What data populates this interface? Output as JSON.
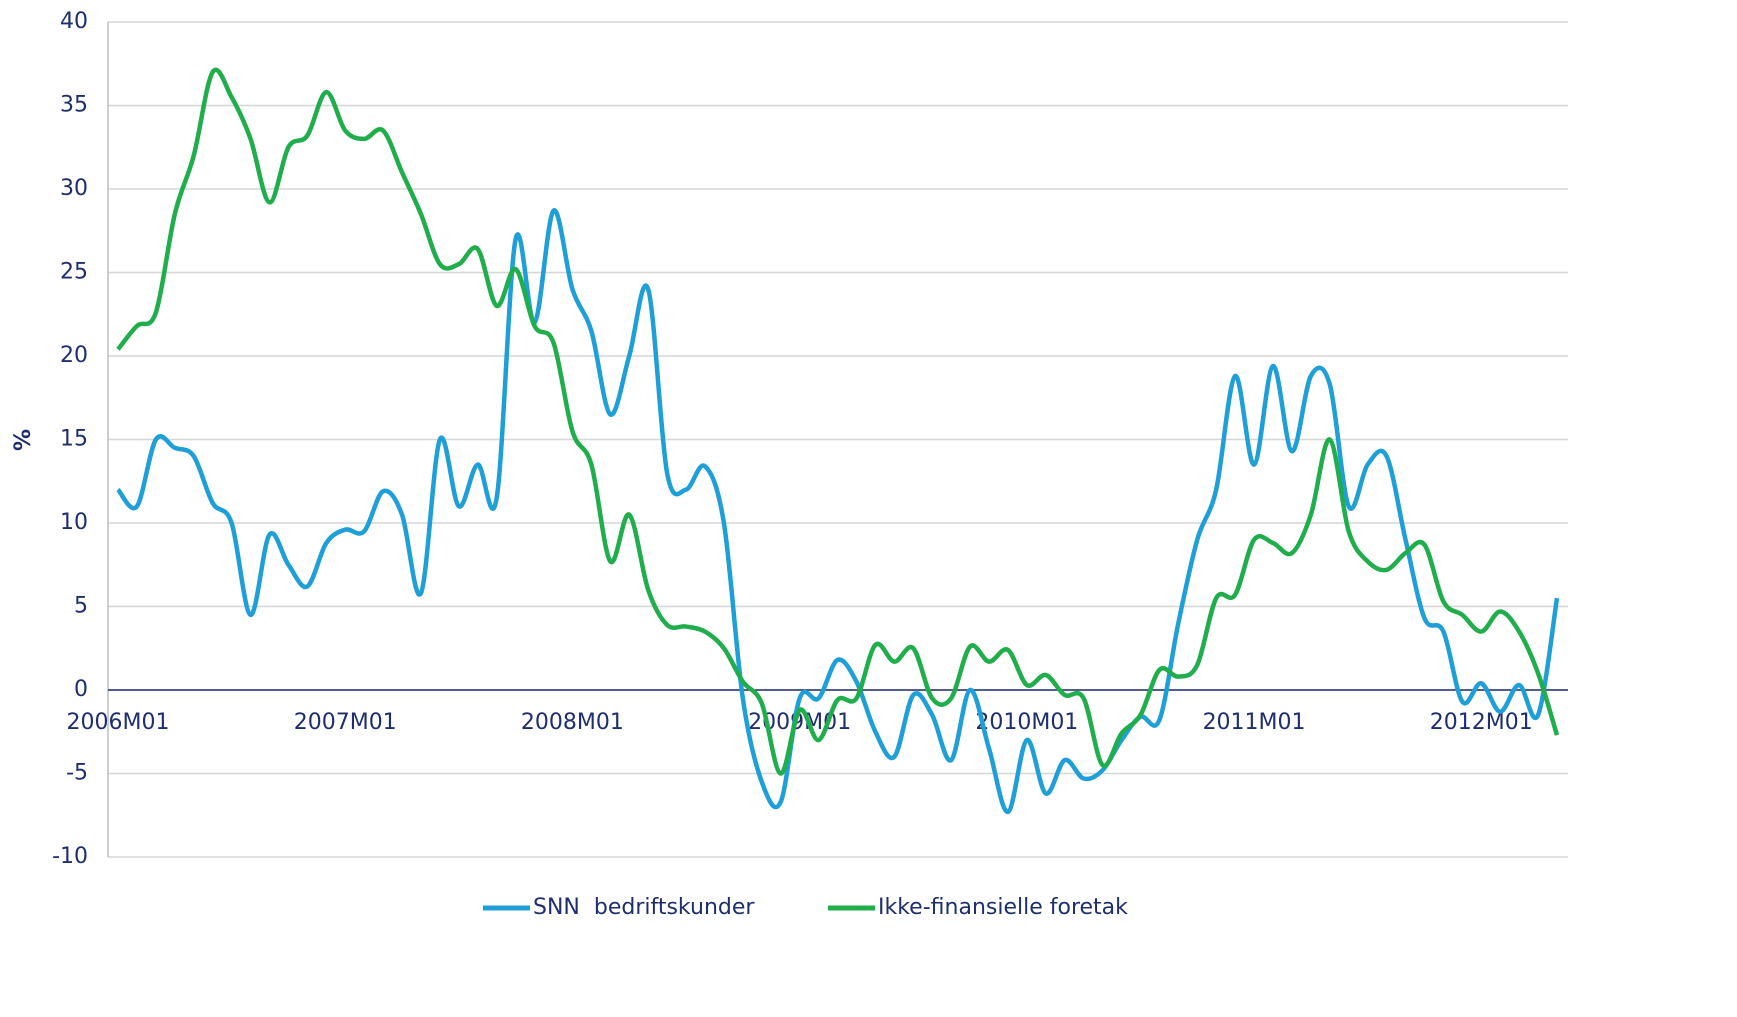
{
  "chart_data": {
    "type": "line",
    "y_label": "%",
    "categories": [
      "2006M01",
      null,
      null,
      null,
      null,
      null,
      null,
      null,
      null,
      null,
      null,
      null,
      "2007M01",
      null,
      null,
      null,
      null,
      null,
      null,
      null,
      null,
      null,
      null,
      null,
      "2008M01",
      null,
      null,
      null,
      null,
      null,
      null,
      null,
      null,
      null,
      null,
      null,
      "2009M01",
      null,
      null,
      null,
      null,
      null,
      null,
      null,
      null,
      null,
      null,
      null,
      "2010M01",
      null,
      null,
      null,
      null,
      null,
      null,
      null,
      null,
      null,
      null,
      null,
      "2011M01",
      null,
      null,
      null,
      null,
      null,
      null,
      null,
      null,
      null,
      null,
      null,
      "2012M01",
      null,
      null,
      null,
      null
    ],
    "series": [
      {
        "name": "SNN  bedriftskunder",
        "color": "#1e9fd8",
        "values": [
          12,
          11,
          15,
          14.5,
          14,
          11.2,
          10,
          4.5,
          9.3,
          7.5,
          6.2,
          8.8,
          9.6,
          9.5,
          11.9,
          10.5,
          5.8,
          15,
          11,
          13.5,
          11.5,
          27,
          22,
          28.7,
          24,
          21.5,
          16.5,
          20,
          24,
          13,
          12,
          13.4,
          10,
          -0.5,
          -5.5,
          -6.7,
          -0.5,
          -0.5,
          1.8,
          0.5,
          -2.5,
          -4,
          -0.3,
          -1.5,
          -4.2,
          0,
          -3.5,
          -7.3,
          -3,
          -6.2,
          -4.2,
          -5.3,
          -4.8,
          -3,
          -1.6,
          -1.8,
          4,
          9,
          12,
          18.8,
          13.5,
          19.4,
          14.3,
          18.8,
          18.3,
          11,
          13.5,
          14,
          9,
          4.3,
          3.5,
          -0.7,
          0.4,
          -1.3,
          0.3,
          -1.5,
          5.5
        ]
      },
      {
        "name": "Ikke-finansielle foretak",
        "color": "#1fae4b",
        "values": [
          20.4,
          21.8,
          22.6,
          28.5,
          32,
          37,
          35.5,
          33,
          29.2,
          32.5,
          33.2,
          35.8,
          33.5,
          33,
          33.5,
          31,
          28.5,
          25.5,
          25.5,
          26.4,
          23,
          25.2,
          21.8,
          20.8,
          15.5,
          13.5,
          7.7,
          10.5,
          6,
          3.9,
          3.8,
          3.5,
          2.5,
          0.5,
          -0.8,
          -5,
          -1.2,
          -3,
          -0.6,
          -0.5,
          2.7,
          1.7,
          2.5,
          -0.5,
          -0.5,
          2.6,
          1.7,
          2.4,
          0.3,
          0.9,
          -0.3,
          -0.5,
          -4.5,
          -2.6,
          -1.5,
          1.2,
          0.8,
          1.5,
          5.5,
          5.7,
          9,
          8.8,
          8.2,
          10.5,
          15,
          9.5,
          7.7,
          7.2,
          8.2,
          8.7,
          5.3,
          4.5,
          3.5,
          4.7,
          3.5,
          1,
          -2.7
        ]
      }
    ],
    "ylim": [
      -10,
      40
    ],
    "yticks": [
      -10,
      -5,
      0,
      5,
      10,
      15,
      20,
      25,
      30,
      35,
      40
    ],
    "grid": true,
    "legend": "bottom"
  }
}
